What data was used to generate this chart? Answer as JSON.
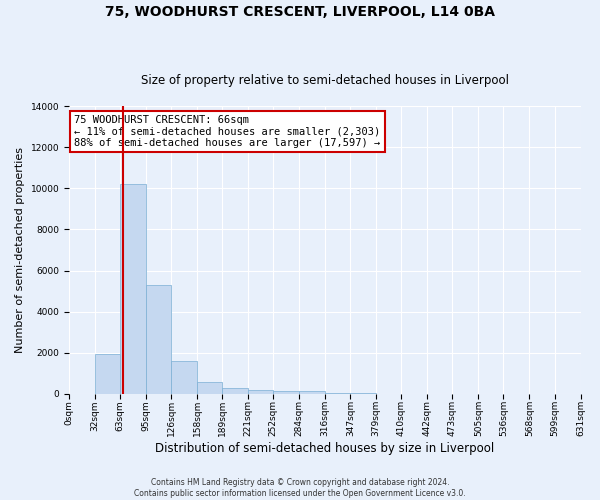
{
  "title": "75, WOODHURST CRESCENT, LIVERPOOL, L14 0BA",
  "subtitle": "Size of property relative to semi-detached houses in Liverpool",
  "xlabel": "Distribution of semi-detached houses by size in Liverpool",
  "ylabel": "Number of semi-detached properties",
  "bin_edges": [
    0,
    32,
    63,
    95,
    126,
    158,
    189,
    221,
    252,
    284,
    316,
    347,
    379,
    410,
    442,
    473,
    505,
    536,
    568,
    599,
    631
  ],
  "bar_heights": [
    0,
    1950,
    10200,
    5300,
    1580,
    590,
    270,
    175,
    125,
    125,
    50,
    50,
    0,
    0,
    0,
    0,
    0,
    0,
    0,
    0
  ],
  "bar_color": "#c5d8f0",
  "bar_edgecolor": "#7bafd4",
  "property_size": 66,
  "red_line_color": "#cc0000",
  "annotation_line1": "75 WOODHURST CRESCENT: 66sqm",
  "annotation_line2": "← 11% of semi-detached houses are smaller (2,303)",
  "annotation_line3": "88% of semi-detached houses are larger (17,597) →",
  "annotation_box_color": "#ffffff",
  "annotation_box_edgecolor": "#cc0000",
  "ylim": [
    0,
    14000
  ],
  "yticks": [
    0,
    2000,
    4000,
    6000,
    8000,
    10000,
    12000,
    14000
  ],
  "footer_line1": "Contains HM Land Registry data © Crown copyright and database right 2024.",
  "footer_line2": "Contains public sector information licensed under the Open Government Licence v3.0.",
  "background_color": "#e8f0fb",
  "plot_bg_color": "#e8f0fb",
  "grid_color": "#ffffff",
  "title_fontsize": 10,
  "subtitle_fontsize": 8.5,
  "tick_label_fontsize": 6.5,
  "ylabel_fontsize": 8,
  "xlabel_fontsize": 8.5,
  "annotation_fontsize": 7.5
}
